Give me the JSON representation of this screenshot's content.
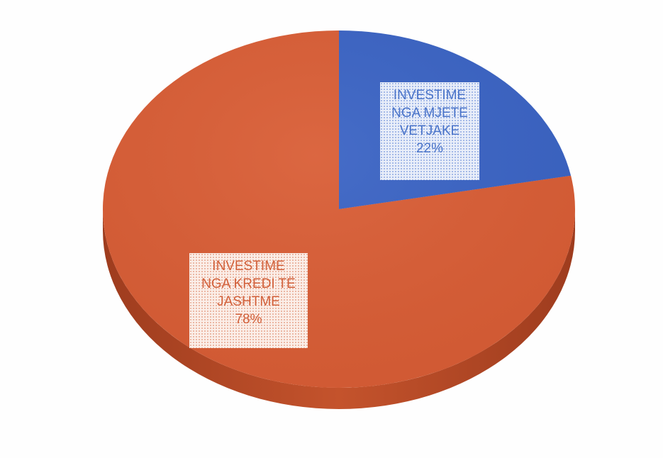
{
  "chart_data": {
    "type": "pie",
    "title": "",
    "slices": [
      {
        "name": "INVESTIME NGA MJETE VETJAKE",
        "value": 22,
        "percent_label": "22%",
        "label_lines": [
          "INVESTIME",
          "NGA MJETE",
          "VETJAKE"
        ],
        "color": "#3a63c4"
      },
      {
        "name": "INVESTIME NGA KREDI TË JASHTME",
        "value": 78,
        "percent_label": "78%",
        "label_lines": [
          "INVESTIME",
          "NGA KREDI TË",
          "JASHTME"
        ],
        "color": "#d95d35"
      }
    ],
    "style": "3d-pie",
    "legend": "none"
  }
}
